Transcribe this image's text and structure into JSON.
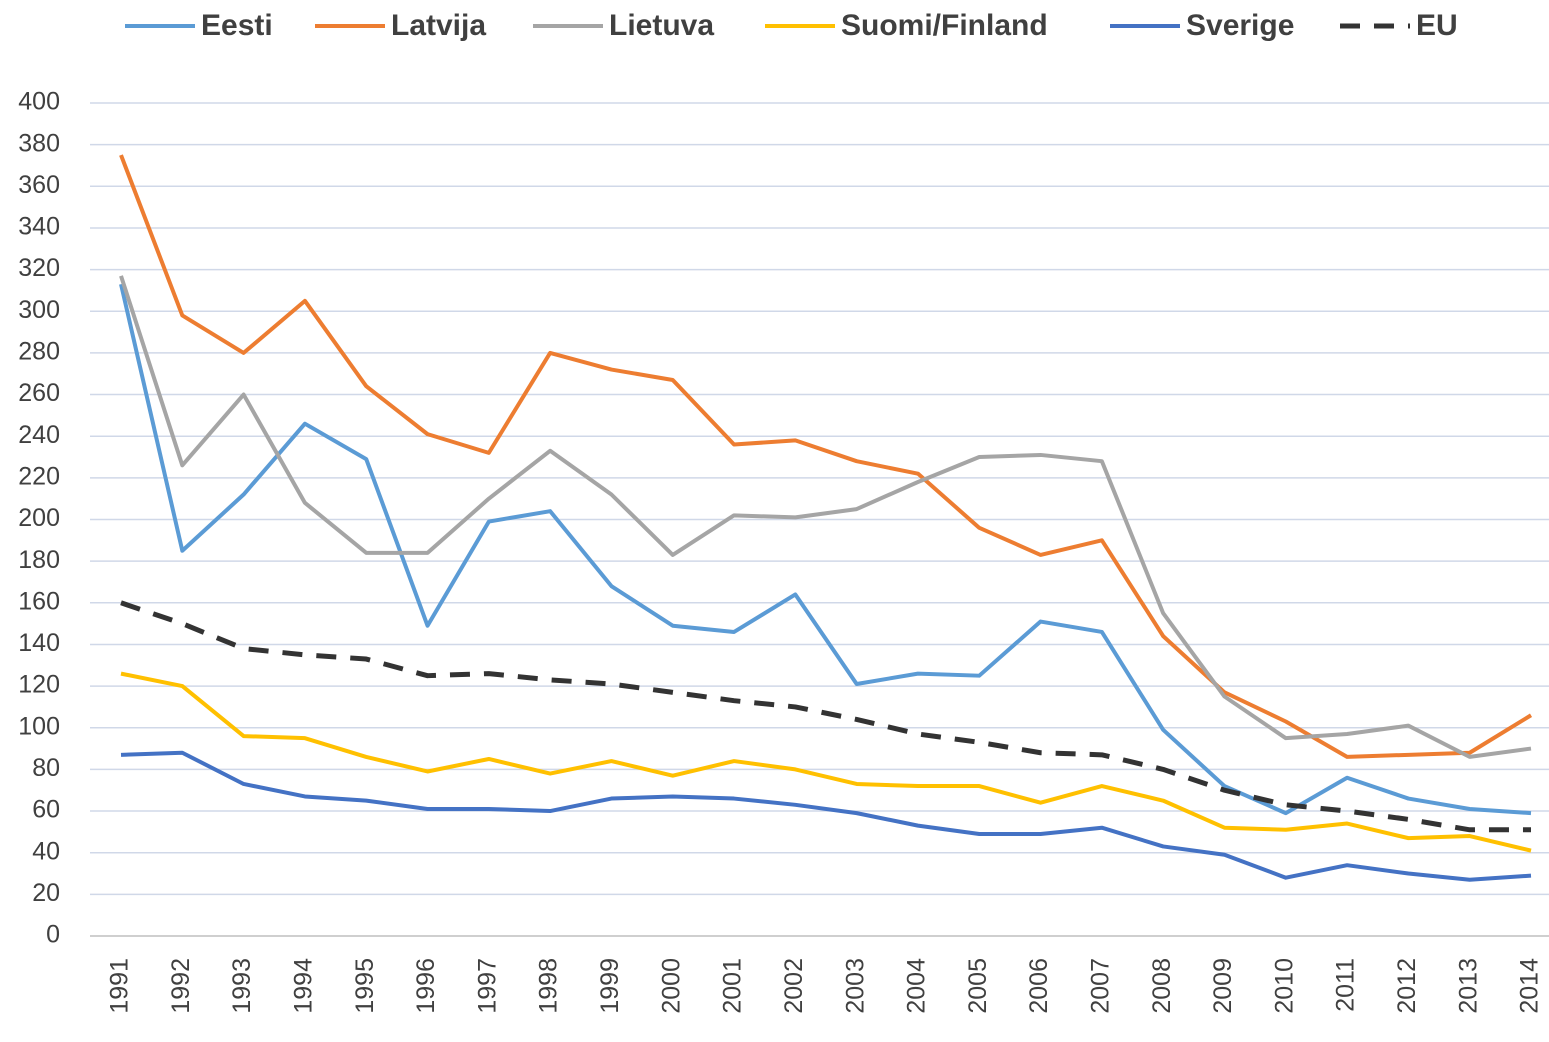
{
  "chart_data": {
    "type": "line",
    "categories": [
      "1991",
      "1992",
      "1993",
      "1994",
      "1995",
      "1996",
      "1997",
      "1998",
      "1999",
      "2000",
      "2001",
      "2002",
      "2003",
      "2004",
      "2005",
      "2006",
      "2007",
      "2008",
      "2009",
      "2010",
      "2011",
      "2012",
      "2013",
      "2014"
    ],
    "series": [
      {
        "name": "Eesti",
        "color": "#5b9bd5",
        "values": [
          313,
          185,
          212,
          246,
          229,
          149,
          199,
          204,
          168,
          149,
          146,
          164,
          121,
          126,
          125,
          151,
          146,
          99,
          72,
          59,
          76,
          66,
          61,
          59
        ]
      },
      {
        "name": "Latvija",
        "color": "#ed7d31",
        "values": [
          375,
          298,
          280,
          305,
          264,
          241,
          232,
          280,
          272,
          267,
          236,
          238,
          228,
          222,
          196,
          183,
          190,
          144,
          117,
          103,
          86,
          87,
          88,
          106
        ]
      },
      {
        "name": "Lietuva",
        "color": "#a5a5a5",
        "values": [
          317,
          226,
          260,
          208,
          184,
          184,
          210,
          233,
          212,
          183,
          202,
          201,
          205,
          218,
          230,
          231,
          228,
          155,
          115,
          95,
          97,
          101,
          86,
          90
        ]
      },
      {
        "name": "Suomi/Finland",
        "color": "#ffc000",
        "values": [
          126,
          120,
          96,
          95,
          86,
          79,
          85,
          78,
          84,
          77,
          84,
          80,
          73,
          72,
          72,
          64,
          72,
          65,
          52,
          51,
          54,
          47,
          48,
          41
        ]
      },
      {
        "name": "Sverige",
        "color": "#4472c4",
        "values": [
          87,
          88,
          73,
          67,
          65,
          61,
          61,
          60,
          66,
          67,
          66,
          63,
          59,
          53,
          49,
          49,
          52,
          43,
          39,
          28,
          34,
          30,
          27,
          29
        ]
      },
      {
        "name": "EU",
        "color": "#333333",
        "dashed": true,
        "values": [
          160,
          150,
          138,
          135,
          133,
          125,
          126,
          123,
          121,
          117,
          113,
          110,
          104,
          97,
          93,
          88,
          87,
          80,
          70,
          63,
          60,
          56,
          51,
          51
        ]
      }
    ],
    "ylim": [
      0,
      400
    ],
    "yticks": [
      0,
      20,
      40,
      60,
      80,
      100,
      120,
      140,
      160,
      180,
      200,
      220,
      240,
      260,
      280,
      300,
      320,
      340,
      360,
      380,
      400
    ],
    "grid": true,
    "legend": "top"
  }
}
